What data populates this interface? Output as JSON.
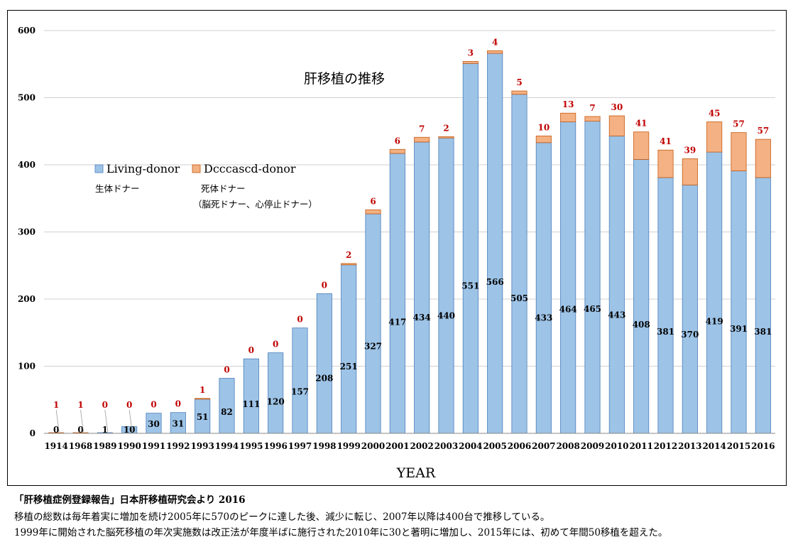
{
  "chart_data": {
    "type": "bar",
    "stacked": true,
    "title": "肝移植の推移",
    "xlabel": "YEAR",
    "ylabel": "",
    "ylim": [
      0,
      600
    ],
    "yticks": [
      0,
      100,
      200,
      300,
      400,
      500,
      600
    ],
    "grid": true,
    "categories": [
      "1914",
      "1968",
      "1989",
      "1990",
      "1991",
      "1992",
      "1993",
      "1994",
      "1995",
      "1996",
      "1997",
      "1998",
      "1999",
      "2000",
      "2001",
      "2002",
      "2003",
      "2004",
      "2005",
      "2006",
      "2007",
      "2008",
      "2009",
      "2010",
      "2011",
      "2012",
      "2013",
      "2014",
      "2015",
      "2016"
    ],
    "series": [
      {
        "name": "Living-donor",
        "sublabel": "生体ドナー",
        "color": "#9dc3e6",
        "values": [
          0,
          0,
          1,
          10,
          30,
          31,
          51,
          82,
          111,
          120,
          157,
          208,
          251,
          327,
          417,
          434,
          440,
          551,
          566,
          505,
          433,
          464,
          465,
          443,
          408,
          381,
          370,
          419,
          391,
          381
        ]
      },
      {
        "name": "Dcccascd-donor",
        "sublabel": "死体ドナー",
        "sublabel2": "（脳死ドナー、心停止ドナー）",
        "color": "#f4b183",
        "values": [
          1,
          1,
          0,
          0,
          0,
          0,
          1,
          0,
          0,
          0,
          0,
          0,
          2,
          6,
          6,
          7,
          2,
          3,
          4,
          5,
          10,
          13,
          7,
          30,
          41,
          41,
          39,
          45,
          57,
          57
        ]
      }
    ],
    "legend_position": "upper-left",
    "living_label_color": "#000000",
    "deceased_label_color": "#c00000",
    "outline_color": "#4a7ebb"
  },
  "notes": {
    "source": "「肝移植症例登録報告」日本肝移植研究会より 2016",
    "line1": "移植の総数は毎年着実に増加を続け2005年に570のピークに達した後、減少に転じ、2007年以降は400台で推移している。",
    "line2": "1999年に開始された脳死移植の年次実施数は改正法が年度半ばに施行された2010年に30と著明に増加し、2015年には、初めて年間50移植を超えた。"
  }
}
